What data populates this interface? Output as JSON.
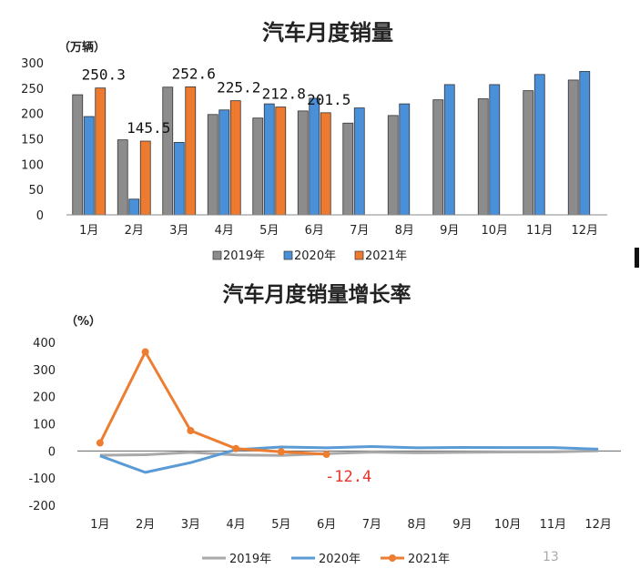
{
  "colors": {
    "s2019_bar": "#8c8c8c",
    "s2020_bar": "#4a90d9",
    "s2021_bar": "#ee7a2f",
    "s2019_line": "#a9a9a9",
    "s2020_line": "#5b9bd5",
    "s2021_line": "#ed7d31",
    "axis": "#888888",
    "callout": "#e8342a"
  },
  "page_number": "13",
  "chart_data": [
    {
      "type": "bar",
      "title": "汽车月度销量",
      "ylabel": "（万辆）",
      "categories": [
        "1月",
        "2月",
        "3月",
        "4月",
        "5月",
        "6月",
        "7月",
        "8月",
        "9月",
        "10月",
        "11月",
        "12月"
      ],
      "ylim": [
        0,
        300
      ],
      "yticks": [
        "0",
        "50",
        "100",
        "150",
        "200",
        "250",
        "300"
      ],
      "series": [
        {
          "name": "2019年",
          "values": [
            237,
            148,
            252,
            198,
            191,
            205,
            181,
            196,
            227,
            229,
            245,
            266
          ]
        },
        {
          "name": "2020年",
          "values": [
            194,
            31,
            143,
            207,
            219,
            230,
            211,
            219,
            257,
            257,
            277,
            283
          ]
        },
        {
          "name": "2021年",
          "values": [
            250.3,
            145.5,
            252.6,
            225.2,
            212.8,
            201.5,
            null,
            null,
            null,
            null,
            null,
            null
          ]
        }
      ],
      "data_labels": [
        "250.3",
        "145.5",
        "252.6",
        "225.2",
        "212.8",
        "201.5"
      ]
    },
    {
      "type": "line",
      "title": "汽车月度销量增长率",
      "ylabel": "（%）",
      "categories": [
        "1月",
        "2月",
        "3月",
        "4月",
        "5月",
        "6月",
        "7月",
        "8月",
        "9月",
        "10月",
        "11月",
        "12月"
      ],
      "ylim": [
        -200,
        400
      ],
      "yticks": [
        "400",
        "300",
        "200",
        "100",
        "0",
        "-100",
        "-200"
      ],
      "series": [
        {
          "name": "2019年",
          "values": [
            -15.8,
            -13.8,
            -5.2,
            -14.6,
            -16.4,
            -9.6,
            -4.3,
            -6.9,
            -5.2,
            -4.1,
            -3.6,
            0.1
          ]
        },
        {
          "name": "2020年",
          "values": [
            -18,
            -79,
            -43,
            4.4,
            14.5,
            11.6,
            16.4,
            11.6,
            12.8,
            12.5,
            12.6,
            6.4
          ]
        },
        {
          "name": "2021年",
          "values": [
            29.5,
            364.6,
            74.9,
            8.6,
            -3.1,
            -12.4,
            null,
            null,
            null,
            null,
            null,
            null
          ]
        }
      ],
      "annotation": "-12.4"
    }
  ]
}
